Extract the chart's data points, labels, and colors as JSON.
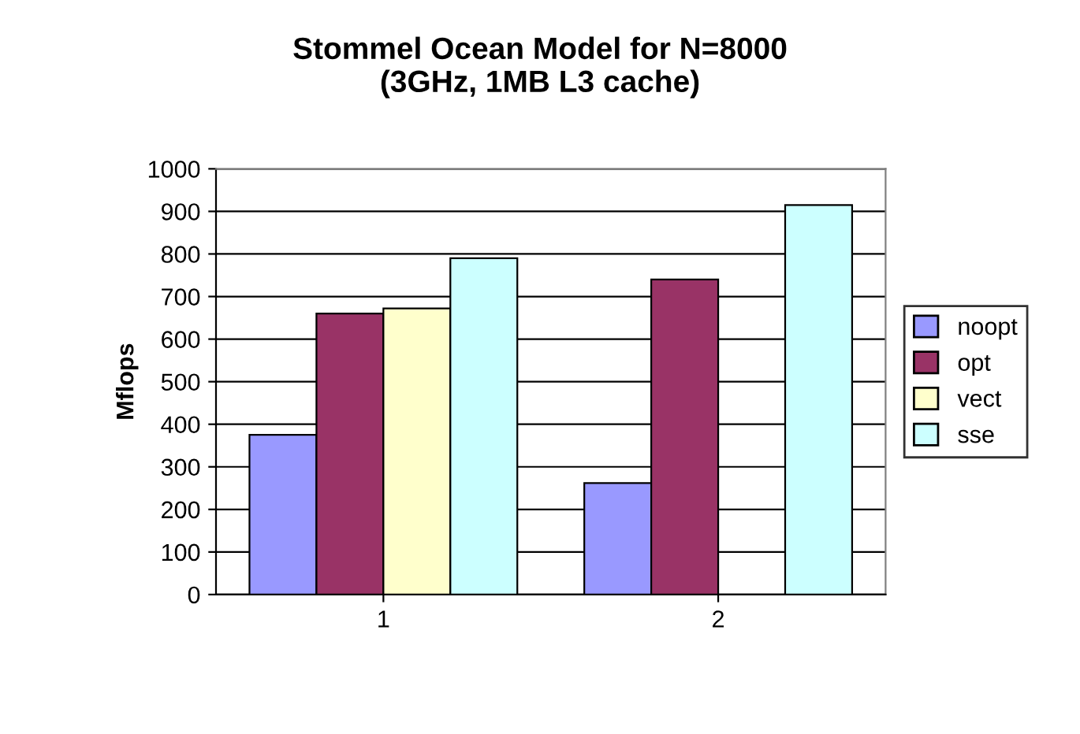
{
  "chart_data": {
    "type": "bar",
    "title": "Stommel Ocean Model for N=8000\n(3GHz, 1MB L3 cache)",
    "ylabel": "Mflops",
    "categories": [
      "1",
      "2"
    ],
    "series": [
      {
        "name": "noopt",
        "color": "#9999ff",
        "values": [
          375,
          262
        ]
      },
      {
        "name": "opt",
        "color": "#993366",
        "values": [
          660,
          740
        ]
      },
      {
        "name": "vect",
        "color": "#ffffcc",
        "values": [
          672,
          null
        ]
      },
      {
        "name": "sse",
        "color": "#ccffff",
        "values": [
          790,
          915
        ]
      }
    ],
    "ylim": [
      0,
      1000
    ],
    "yticks": [
      0,
      100,
      200,
      300,
      400,
      500,
      600,
      700,
      800,
      900,
      1000
    ],
    "grid": "y",
    "legend": "right"
  }
}
